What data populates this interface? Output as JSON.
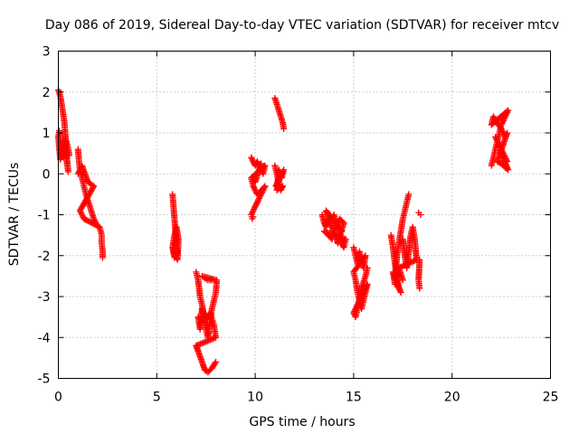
{
  "chart_data": {
    "type": "scatter",
    "title": "Day 086 of 2019, Sidereal Day-to-day VTEC variation (SDTVAR) for receiver mtcv",
    "xlabel": "GPS time / hours",
    "ylabel": "SDTVAR / TECUs",
    "xlim": [
      0,
      25
    ],
    "ylim": [
      -5,
      3
    ],
    "x_ticks": [
      "0",
      "5",
      "10",
      "15",
      "20",
      "25"
    ],
    "y_ticks": [
      "-5",
      "-4",
      "-3",
      "-2",
      "-1",
      "0",
      "1",
      "2",
      "3"
    ],
    "grid": true,
    "marker": "plus",
    "color": "#ff0000",
    "segments": [
      {
        "points": [
          [
            0.0,
            2.05
          ],
          [
            0.1,
            1.9
          ],
          [
            0.2,
            1.6
          ],
          [
            0.3,
            1.3
          ],
          [
            0.35,
            1.0
          ],
          [
            0.4,
            0.6
          ],
          [
            0.45,
            0.3
          ],
          [
            0.5,
            0.05
          ],
          [
            0.3,
            0.8
          ],
          [
            0.2,
            0.5
          ],
          [
            0.1,
            0.35
          ],
          [
            0.0,
            0.9
          ],
          [
            0.05,
            1.05
          ],
          [
            0.15,
            0.6
          ],
          [
            0.25,
            0.4
          ],
          [
            0.4,
            0.8
          ],
          [
            0.5,
            0.6
          ],
          [
            0.55,
            0.45
          ]
        ]
      },
      {
        "points": [
          [
            1.0,
            0.6
          ],
          [
            1.05,
            0.3
          ],
          [
            1.1,
            0.1
          ],
          [
            1.2,
            -0.1
          ],
          [
            1.3,
            -0.3
          ],
          [
            1.4,
            -0.5
          ],
          [
            1.5,
            -0.65
          ],
          [
            1.6,
            -0.8
          ],
          [
            1.7,
            -0.95
          ],
          [
            1.8,
            -1.1
          ],
          [
            1.9,
            -1.2
          ],
          [
            1.0,
            0.0
          ],
          [
            1.2,
            0.2
          ],
          [
            1.5,
            -0.2
          ],
          [
            1.8,
            -0.3
          ],
          [
            1.1,
            -0.9
          ],
          [
            1.2,
            -1.0
          ],
          [
            1.3,
            -1.1
          ],
          [
            2.1,
            -1.3
          ],
          [
            2.2,
            -1.5
          ],
          [
            2.2,
            -1.7
          ],
          [
            2.25,
            -1.9
          ],
          [
            2.25,
            -2.05
          ]
        ]
      },
      {
        "points": [
          [
            5.8,
            -0.5
          ],
          [
            5.85,
            -0.8
          ],
          [
            5.9,
            -1.1
          ],
          [
            5.95,
            -1.4
          ],
          [
            6.0,
            -1.7
          ],
          [
            6.05,
            -1.9
          ],
          [
            5.9,
            -2.05
          ],
          [
            5.8,
            -1.8
          ],
          [
            5.9,
            -1.5
          ],
          [
            6.0,
            -1.3
          ],
          [
            6.1,
            -1.6
          ],
          [
            6.05,
            -2.1
          ],
          [
            5.85,
            -1.9
          ]
        ]
      },
      {
        "points": [
          [
            7.0,
            -2.4
          ],
          [
            7.1,
            -2.6
          ],
          [
            7.2,
            -3.0
          ],
          [
            7.3,
            -3.2
          ],
          [
            7.4,
            -3.5
          ],
          [
            7.5,
            -3.8
          ],
          [
            7.6,
            -4.0
          ],
          [
            7.7,
            -3.6
          ],
          [
            7.8,
            -3.3
          ],
          [
            7.9,
            -3.1
          ],
          [
            8.0,
            -2.9
          ],
          [
            8.05,
            -2.6
          ],
          [
            7.3,
            -2.5
          ],
          [
            7.6,
            -2.6
          ],
          [
            7.8,
            -2.6
          ],
          [
            7.1,
            -3.5
          ],
          [
            7.2,
            -3.8
          ],
          [
            7.3,
            -3.3
          ],
          [
            7.5,
            -3.6
          ],
          [
            7.7,
            -3.4
          ],
          [
            7.9,
            -3.7
          ],
          [
            8.0,
            -4.0
          ],
          [
            7.0,
            -4.2
          ],
          [
            7.15,
            -4.4
          ],
          [
            7.3,
            -4.6
          ],
          [
            7.45,
            -4.8
          ],
          [
            7.6,
            -4.85
          ],
          [
            7.8,
            -4.75
          ],
          [
            8.0,
            -4.6
          ]
        ]
      },
      {
        "points": [
          [
            9.8,
            0.4
          ],
          [
            9.9,
            0.3
          ],
          [
            10.0,
            0.2
          ],
          [
            10.1,
            0.3
          ],
          [
            10.2,
            0.2
          ],
          [
            10.3,
            0.1
          ],
          [
            10.4,
            0.0
          ],
          [
            10.5,
            0.2
          ],
          [
            9.8,
            -0.1
          ],
          [
            9.9,
            -0.3
          ],
          [
            10.0,
            -0.4
          ],
          [
            10.1,
            -0.5
          ],
          [
            10.3,
            -0.4
          ],
          [
            10.5,
            -0.3
          ],
          [
            9.8,
            -1.0
          ],
          [
            9.85,
            -1.1
          ],
          [
            9.9,
            -1.05
          ],
          [
            10.3,
            0.25
          ],
          [
            10.0,
            -0.2
          ]
        ]
      },
      {
        "points": [
          [
            11.0,
            1.85
          ],
          [
            11.1,
            1.7
          ],
          [
            11.2,
            1.55
          ],
          [
            11.3,
            1.4
          ],
          [
            11.4,
            1.25
          ],
          [
            11.45,
            1.1
          ],
          [
            11.0,
            0.2
          ],
          [
            11.1,
            0.0
          ],
          [
            11.2,
            -0.2
          ],
          [
            11.3,
            -0.4
          ],
          [
            11.4,
            -0.3
          ],
          [
            11.1,
            -0.4
          ],
          [
            11.2,
            0.1
          ],
          [
            11.35,
            -0.1
          ],
          [
            11.45,
            0.1
          ],
          [
            11.05,
            -0.3
          ]
        ]
      },
      {
        "points": [
          [
            13.4,
            -1.0
          ],
          [
            13.5,
            -1.2
          ],
          [
            13.6,
            -1.3
          ],
          [
            13.7,
            -1.1
          ],
          [
            13.8,
            -1.0
          ],
          [
            13.9,
            -1.1
          ],
          [
            14.0,
            -1.0
          ],
          [
            14.1,
            -1.2
          ],
          [
            14.2,
            -1.3
          ],
          [
            14.3,
            -1.5
          ],
          [
            14.4,
            -1.7
          ],
          [
            14.5,
            -1.8
          ],
          [
            14.6,
            -1.6
          ],
          [
            13.5,
            -1.4
          ],
          [
            13.7,
            -1.5
          ],
          [
            13.9,
            -1.6
          ],
          [
            14.0,
            -1.4
          ],
          [
            14.3,
            -1.1
          ],
          [
            14.5,
            -1.2
          ],
          [
            14.2,
            -1.7
          ],
          [
            13.6,
            -0.9
          ],
          [
            14.4,
            -1.4
          ]
        ]
      },
      {
        "points": [
          [
            15.0,
            -1.8
          ],
          [
            15.1,
            -2.0
          ],
          [
            15.2,
            -2.2
          ],
          [
            15.3,
            -1.9
          ],
          [
            15.4,
            -2.1
          ],
          [
            15.5,
            -2.3
          ],
          [
            15.6,
            -2.0
          ],
          [
            15.0,
            -2.4
          ],
          [
            15.1,
            -2.6
          ],
          [
            15.2,
            -2.9
          ],
          [
            15.3,
            -3.1
          ],
          [
            15.4,
            -3.3
          ],
          [
            15.5,
            -3.1
          ],
          [
            15.6,
            -2.9
          ],
          [
            15.7,
            -2.7
          ],
          [
            15.0,
            -3.4
          ],
          [
            15.1,
            -3.5
          ],
          [
            15.2,
            -3.3
          ],
          [
            15.4,
            -2.8
          ],
          [
            15.6,
            -2.5
          ],
          [
            15.7,
            -2.3
          ]
        ]
      },
      {
        "points": [
          [
            16.9,
            -1.5
          ],
          [
            17.0,
            -1.8
          ],
          [
            17.1,
            -2.2
          ],
          [
            17.2,
            -2.5
          ],
          [
            17.3,
            -2.8
          ],
          [
            17.4,
            -2.9
          ],
          [
            17.0,
            -2.4
          ],
          [
            17.1,
            -2.7
          ],
          [
            17.2,
            -2.0
          ],
          [
            17.3,
            -1.7
          ],
          [
            17.4,
            -1.4
          ],
          [
            17.5,
            -1.1
          ],
          [
            17.6,
            -0.9
          ],
          [
            17.7,
            -0.7
          ],
          [
            17.8,
            -0.5
          ],
          [
            17.5,
            -1.6
          ],
          [
            17.6,
            -2.0
          ],
          [
            17.7,
            -2.3
          ],
          [
            17.8,
            -1.9
          ],
          [
            17.9,
            -1.5
          ],
          [
            18.0,
            -1.3
          ],
          [
            18.1,
            -1.6
          ],
          [
            18.2,
            -2.1
          ],
          [
            17.3,
            -2.3
          ],
          [
            17.5,
            -2.6
          ],
          [
            18.3,
            -0.95
          ],
          [
            18.4,
            -1.0
          ],
          [
            18.35,
            -2.1
          ],
          [
            18.3,
            -2.6
          ],
          [
            18.35,
            -2.8
          ]
        ]
      },
      {
        "points": [
          [
            22.0,
            0.2
          ],
          [
            22.1,
            0.4
          ],
          [
            22.2,
            0.6
          ],
          [
            22.3,
            0.8
          ],
          [
            22.4,
            1.0
          ],
          [
            22.5,
            1.2
          ],
          [
            22.6,
            1.3
          ],
          [
            22.7,
            1.4
          ],
          [
            22.8,
            1.5
          ],
          [
            22.85,
            1.55
          ],
          [
            22.0,
            1.2
          ],
          [
            22.1,
            1.4
          ],
          [
            22.2,
            1.3
          ],
          [
            22.5,
            1.1
          ],
          [
            22.7,
            0.9
          ],
          [
            22.8,
            1.0
          ],
          [
            22.3,
            0.3
          ],
          [
            22.5,
            0.25
          ],
          [
            22.7,
            0.15
          ],
          [
            22.85,
            0.1
          ],
          [
            22.4,
            0.6
          ],
          [
            22.6,
            0.5
          ],
          [
            22.2,
            0.9
          ],
          [
            22.8,
            0.3
          ]
        ]
      }
    ]
  }
}
